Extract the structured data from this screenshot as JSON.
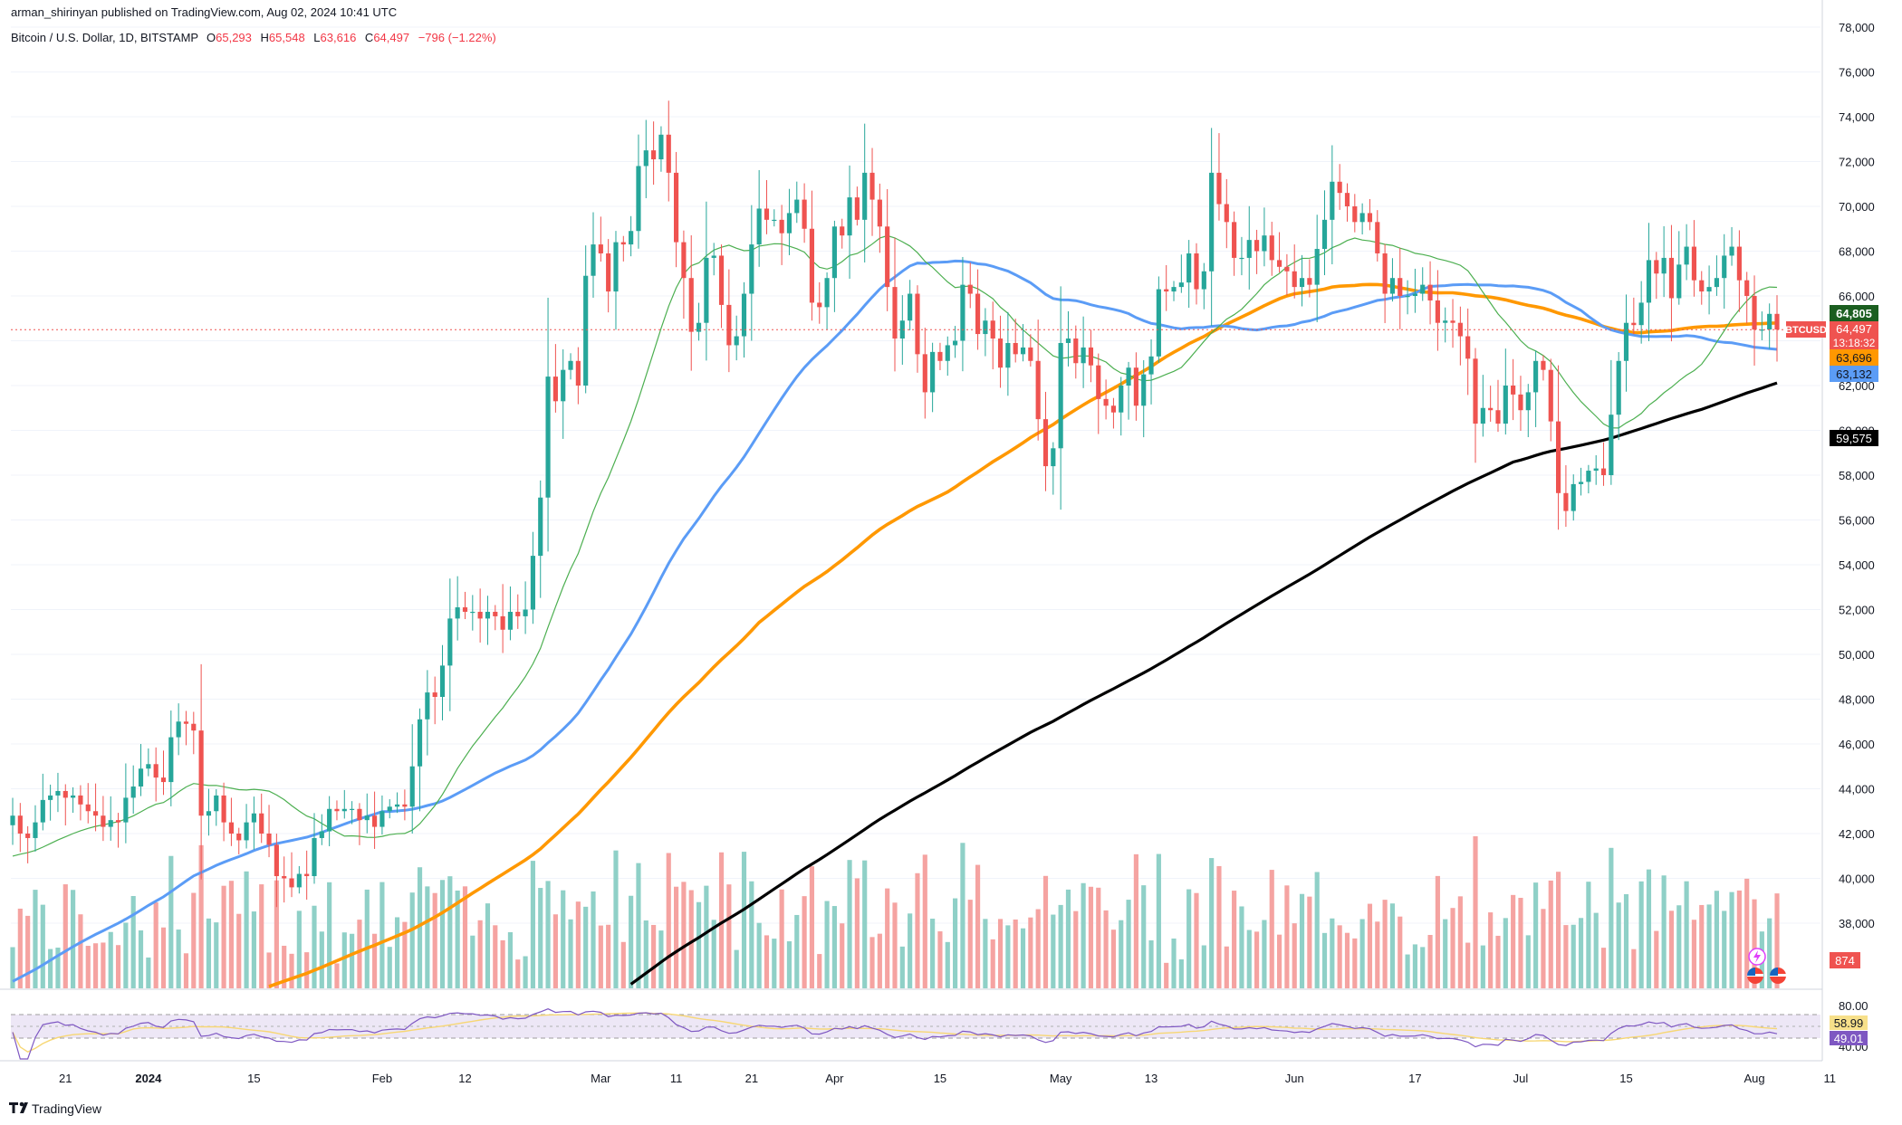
{
  "header": {
    "publisher": "arman_shirinyan published on TradingView.com, Aug 02, 2024 10:41 UTC",
    "symbol_line": "Bitcoin / U.S. Dollar, 1D, BITSTAMP",
    "ohlc": {
      "o_label": "O",
      "o": "65,293",
      "h_label": "H",
      "h": "65,548",
      "l_label": "L",
      "l": "63,616",
      "c_label": "C",
      "c": "64,497",
      "change": "−796 (−1.22%)"
    }
  },
  "footer": {
    "brand": "TradingView",
    "logo_icon": "tradingview-logo-icon"
  },
  "colors": {
    "up": "#26a69a",
    "down": "#ef5350",
    "vol_up": "#8fd0c7",
    "vol_down": "#f5a3a1",
    "ma_short": "#4caf50",
    "ma_blue": "#5b9cf6",
    "ma_orange": "#ff9800",
    "ma_black": "#000000",
    "rsi_line": "#7e57c2",
    "rsi_ma": "#f7d774",
    "rsi_band": "#ede7f6"
  },
  "price_axis": {
    "ticks": [
      "78,000",
      "76,000",
      "74,000",
      "72,000",
      "70,000",
      "68,000",
      "66,000",
      "62,000",
      "60,000",
      "58,000",
      "56,000",
      "54,000",
      "52,000",
      "50,000",
      "48,000",
      "46,000",
      "44,000",
      "42,000",
      "40,000",
      "38,000"
    ]
  },
  "labels": {
    "last_price_top": "64,805",
    "symbol_tag": "BTCUSD",
    "last_price": "64,497",
    "countdown": "13:18:32",
    "ma_orange_value": "63,696",
    "ma_blue_value": "63,132",
    "ma_black_value": "59,575",
    "volume_value": "874"
  },
  "rsi_axis": {
    "ticks": [
      "80.00",
      "40.00"
    ],
    "rsi_value": "49.01",
    "rsi_ma_value": "58.99"
  },
  "time_axis": {
    "labels": [
      {
        "text": "21",
        "bold": false
      },
      {
        "text": "2024",
        "bold": true
      },
      {
        "text": "15",
        "bold": false
      },
      {
        "text": "Feb",
        "bold": false
      },
      {
        "text": "12",
        "bold": false
      },
      {
        "text": "Mar",
        "bold": false
      },
      {
        "text": "11",
        "bold": false
      },
      {
        "text": "21",
        "bold": false
      },
      {
        "text": "Apr",
        "bold": false
      },
      {
        "text": "15",
        "bold": false
      },
      {
        "text": "May",
        "bold": false
      },
      {
        "text": "13",
        "bold": false
      },
      {
        "text": "Jun",
        "bold": false
      },
      {
        "text": "17",
        "bold": false
      },
      {
        "text": "Jul",
        "bold": false
      },
      {
        "text": "15",
        "bold": false
      },
      {
        "text": "Aug",
        "bold": false
      },
      {
        "text": "11",
        "bold": false
      }
    ]
  },
  "chart_data": {
    "type": "candlestick",
    "symbol": "BTCUSD",
    "exchange": "BITSTAMP",
    "interval": "1D",
    "x_start": "2023-12-14",
    "y_range": [
      37000,
      78000
    ],
    "grid": true,
    "closes": [
      42800,
      42000,
      41800,
      42500,
      43500,
      43700,
      43900,
      43600,
      43700,
      43300,
      43000,
      42800,
      42300,
      42600,
      42500,
      43600,
      44100,
      44900,
      45100,
      44500,
      44300,
      46300,
      47000,
      46900,
      46600,
      42800,
      43000,
      43700,
      42500,
      42000,
      41700,
      42500,
      42900,
      42000,
      41500,
      40100,
      40000,
      39600,
      40200,
      40100,
      41800,
      42100,
      43100,
      43000,
      43100,
      43100,
      42600,
      42800,
      42300,
      43000,
      43200,
      43300,
      43200,
      45000,
      47100,
      48300,
      48100,
      49500,
      51600,
      52100,
      51900,
      51900,
      51600,
      51900,
      51700,
      51100,
      51900,
      51700,
      52000,
      54400,
      57000,
      62400,
      61300,
      62700,
      63100,
      62000,
      66900,
      68300,
      67900,
      66200,
      68400,
      68300,
      68900,
      71800,
      72500,
      72100,
      73200,
      71500,
      68400,
      66800,
      64400,
      64800,
      67700,
      67800,
      65600,
      63800,
      64200,
      66100,
      68300,
      69900,
      69400,
      69400,
      68800,
      69700,
      70300,
      69000,
      65700,
      65500,
      66800,
      69100,
      68700,
      70400,
      69400,
      71500,
      70300,
      69100,
      66400,
      64100,
      64900,
      66100,
      63400,
      61700,
      63500,
      63100,
      63800,
      64000,
      66500,
      66100,
      64300,
      64900,
      64100,
      62800,
      63900,
      63400,
      63700,
      63100,
      60500,
      58400,
      59200,
      63900,
      64100,
      63000,
      63700,
      62900,
      61400,
      61100,
      60800,
      62000,
      62800,
      61100,
      62500,
      63300,
      66300,
      66200,
      66400,
      66600,
      67900,
      66300,
      67100,
      71500,
      70100,
      69300,
      67700,
      67700,
      68500,
      68000,
      68700,
      67600,
      67300,
      67100,
      66400,
      66800,
      66500,
      68100,
      69400,
      71100,
      70600,
      70000,
      69300,
      69700,
      69300,
      67900,
      66100,
      66800,
      66000,
      66000,
      66100,
      66500,
      65800,
      64800,
      64900,
      64800,
      64200,
      63200,
      60300,
      61000,
      60900,
      60300,
      62000,
      61600,
      60900,
      61700,
      63100,
      62700,
      60400,
      57200,
      56400,
      57600,
      57700,
      58200,
      58300,
      58000,
      60700,
      63100,
      64800,
      64700,
      65700,
      67600,
      67000,
      67700,
      65900,
      67400,
      68200,
      66700,
      66200,
      66400,
      66800,
      67800,
      68200,
      66700,
      66000,
      64500,
      64500,
      65200,
      64500
    ],
    "series": [
      {
        "name": "MA short",
        "values_sample": "~20-day"
      },
      {
        "name": "MA blue",
        "last": 63132
      },
      {
        "name": "MA orange",
        "last": 63696
      },
      {
        "name": "MA black",
        "last": 59575
      }
    ]
  }
}
